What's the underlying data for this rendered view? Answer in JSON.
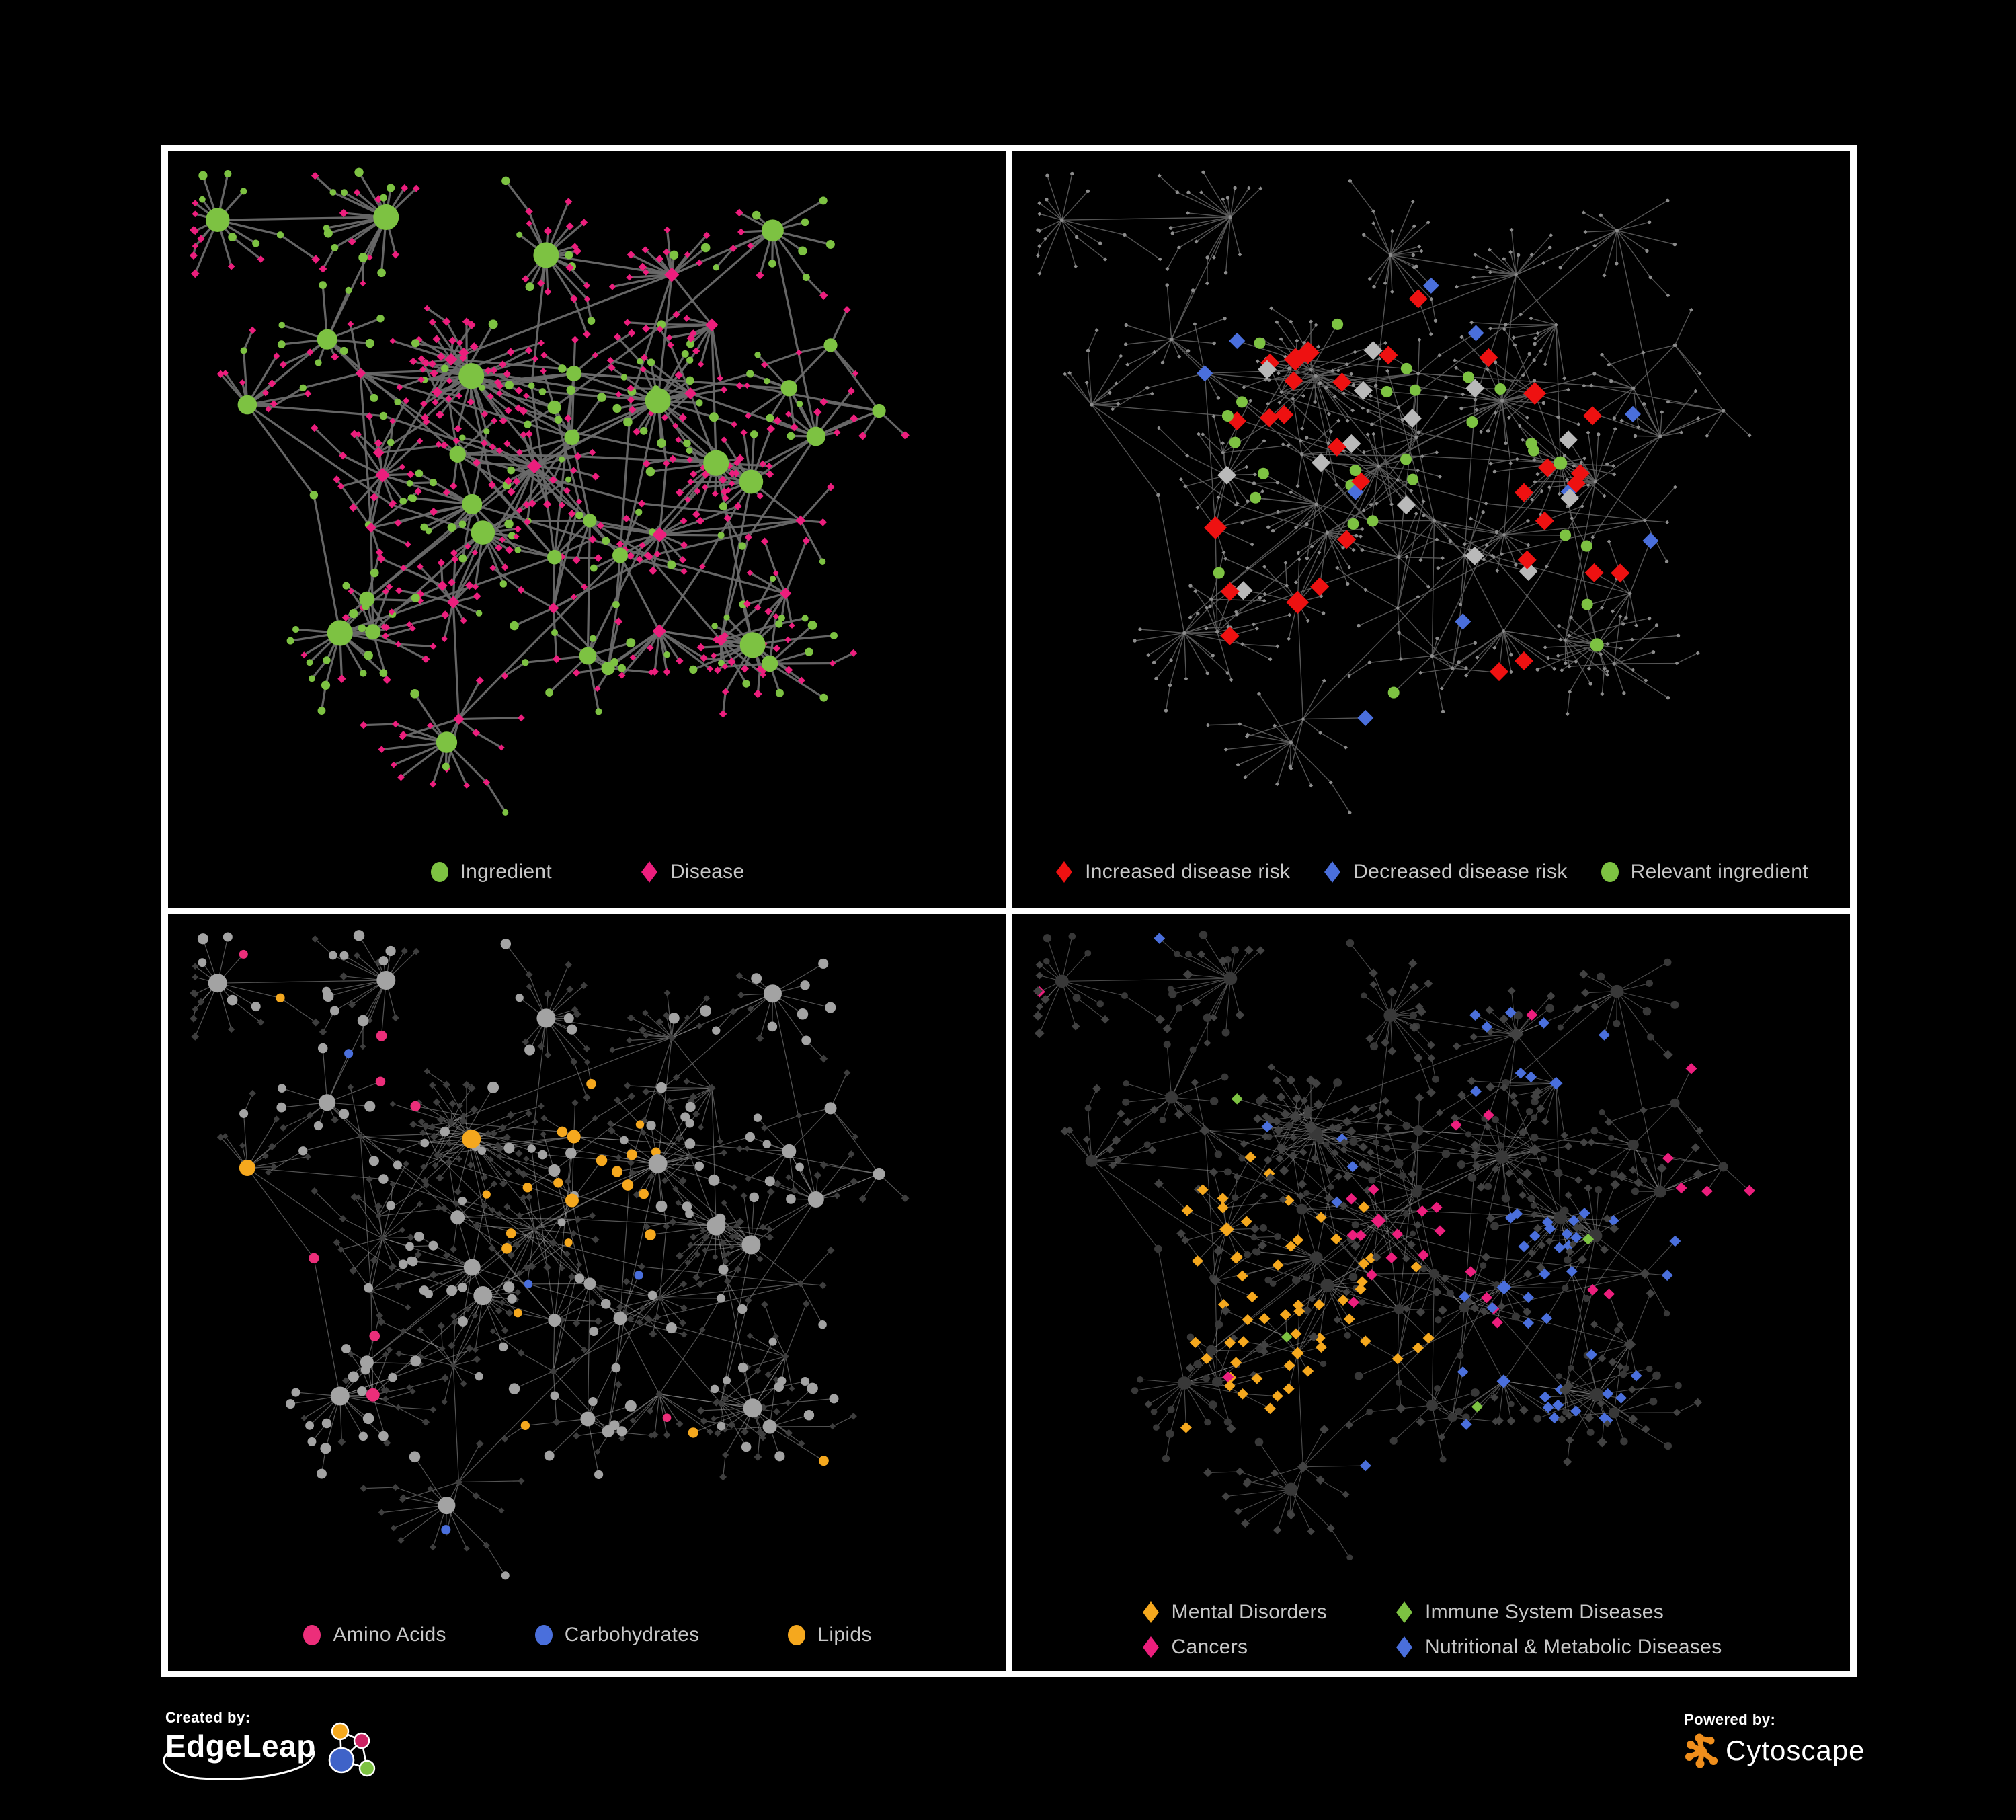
{
  "page": {
    "background": "#000000",
    "frame_color": "#ffffff",
    "legend_text_color": "#c8c8c8"
  },
  "panels": [
    {
      "id": "ingredient-disease",
      "legend_layout": "row",
      "legend": [
        {
          "shape": "circle",
          "color": "#7dc242",
          "label": "Ingredient"
        },
        {
          "shape": "diamond",
          "color": "#ec1e7d",
          "label": "Disease"
        }
      ],
      "style": {
        "edge": {
          "color": "#6a6a6a",
          "width": 3.2,
          "opacity": 0.95
        },
        "ingredient_color": "#7dc242",
        "disease_color": "#ec1e7d"
      }
    },
    {
      "id": "disease-risk",
      "legend_layout": "row-tight",
      "legend": [
        {
          "shape": "diamond",
          "color": "#ee1111",
          "label": "Increased disease risk"
        },
        {
          "shape": "diamond",
          "color": "#4a6fdc",
          "label": "Decreased disease risk"
        },
        {
          "shape": "circle",
          "color": "#7dc242",
          "label": "Relevant ingredient"
        }
      ],
      "style": {
        "edge": {
          "color": "#5e5e5e",
          "width": 1.4,
          "opacity": 0.9
        },
        "base_color": "#8c8c8c",
        "increased_color": "#ee1111",
        "decreased_color": "#4a6fdc",
        "unchanged_color": "#b9b9b9",
        "ingredient_color": "#7dc242"
      }
    },
    {
      "id": "nutrient-classes",
      "legend_layout": "row",
      "legend": [
        {
          "shape": "circle",
          "color": "#ec2e7a",
          "label": "Amino Acids"
        },
        {
          "shape": "circle",
          "color": "#4a6fdc",
          "label": "Carbohydrates"
        },
        {
          "shape": "circle",
          "color": "#f5a81e",
          "label": "Lipids"
        }
      ],
      "style": {
        "edge": {
          "color": "#9a9a9a",
          "width": 1.2,
          "opacity": 0.55
        },
        "plain_ingredient_color": "#a3a3a3",
        "disease_color": "#3e3e3e",
        "amino_color": "#ec2e7a",
        "carb_color": "#4a6fdc",
        "lipid_color": "#f5a81e"
      }
    },
    {
      "id": "disease-categories",
      "legend_layout": "grid",
      "legend": [
        {
          "shape": "diamond",
          "color": "#f5a81e",
          "label": "Mental Disorders"
        },
        {
          "shape": "diamond",
          "color": "#7dc242",
          "label": "Immune System Diseases"
        },
        {
          "shape": "diamond",
          "color": "#ec1e7d",
          "label": "Cancers"
        },
        {
          "shape": "diamond",
          "color": "#4a6fdc",
          "label": "Nutritional & Metabolic Diseases"
        }
      ],
      "style": {
        "edge": {
          "color": "#9a9a9a",
          "width": 1.1,
          "opacity": 0.5
        },
        "plain_disease_color": "#424242",
        "ingredient_color": "#383838",
        "mental_color": "#f5a81e",
        "immune_color": "#7dc242",
        "cancer_color": "#ec1e7d",
        "nutritional_color": "#4a6fdc"
      }
    }
  ],
  "footer": {
    "created_by": {
      "label": "Created by:",
      "brand": "EdgeLeap"
    },
    "powered_by": {
      "label": "Powered by:",
      "brand": "Cytoscape"
    },
    "edgeleap_colors": {
      "orange": "#f5a81e",
      "pink": "#cc2363",
      "blue": "#3f63c8",
      "green": "#7dc242"
    },
    "cytoscape_color": "#ef8e1c"
  },
  "network": {
    "seed": 1337,
    "bridges": 46,
    "blobs": [
      [
        380,
        420,
        150,
        130,
        16
      ],
      [
        560,
        330,
        120,
        110,
        10
      ],
      [
        300,
        640,
        120,
        90,
        6
      ],
      [
        700,
        560,
        120,
        100,
        6
      ],
      [
        820,
        260,
        90,
        80,
        5
      ],
      [
        560,
        760,
        110,
        70,
        5
      ],
      [
        180,
        260,
        80,
        80,
        4
      ]
    ]
  }
}
